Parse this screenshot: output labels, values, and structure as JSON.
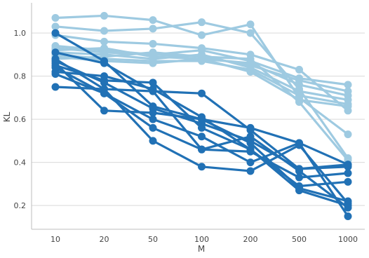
{
  "chart_data": {
    "type": "line",
    "xlabel": "M",
    "ylabel": "KL",
    "categories": [
      "10",
      "20",
      "50",
      "100",
      "200",
      "500",
      "1000"
    ],
    "ylim": [
      0.09,
      1.14
    ],
    "yticks": [
      0.2,
      0.4,
      0.6,
      0.8,
      1.0
    ],
    "ytick_labels": [
      "0.2",
      "0.4",
      "0.6",
      "0.8",
      "1.0"
    ],
    "grid": "horizontal",
    "legend": "none",
    "colors": {
      "light": "#9ecae1",
      "dark": "#2171b5",
      "grid": "#d9d9d9",
      "axis": "#bdbdbd",
      "text": "#444444"
    },
    "series": [
      {
        "group": "light",
        "values": [
          1.07,
          1.08,
          1.06,
          0.99,
          1.04,
          0.7,
          0.53
        ]
      },
      {
        "group": "light",
        "values": [
          1.03,
          1.01,
          1.02,
          1.05,
          1.0,
          0.74,
          0.42
        ]
      },
      {
        "group": "light",
        "values": [
          0.99,
          0.96,
          0.95,
          0.93,
          0.9,
          0.83,
          0.64
        ]
      },
      {
        "group": "light",
        "values": [
          0.94,
          0.92,
          0.9,
          0.92,
          0.87,
          0.79,
          0.76
        ]
      },
      {
        "group": "light",
        "values": [
          0.93,
          0.91,
          0.9,
          0.89,
          0.85,
          0.78,
          0.73
        ]
      },
      {
        "group": "light",
        "values": [
          0.92,
          0.93,
          0.89,
          0.88,
          0.86,
          0.76,
          0.71
        ]
      },
      {
        "group": "light",
        "values": [
          0.91,
          0.9,
          0.88,
          0.9,
          0.84,
          0.73,
          0.69
        ]
      },
      {
        "group": "light",
        "values": [
          0.9,
          0.88,
          0.87,
          0.87,
          0.83,
          0.71,
          0.67
        ]
      },
      {
        "group": "light",
        "values": [
          0.89,
          0.87,
          0.86,
          0.88,
          0.82,
          0.69,
          0.66
        ]
      },
      {
        "group": "light",
        "values": [
          0.88,
          0.89,
          0.91,
          0.89,
          0.88,
          0.68,
          0.41
        ]
      },
      {
        "group": "dark",
        "values": [
          1.0,
          0.87,
          0.66,
          0.6,
          0.56,
          0.49,
          0.39
        ]
      },
      {
        "group": "dark",
        "values": [
          0.91,
          0.86,
          0.73,
          0.72,
          0.55,
          0.37,
          0.38
        ]
      },
      {
        "group": "dark",
        "values": [
          0.87,
          0.77,
          0.65,
          0.58,
          0.5,
          0.37,
          0.39
        ]
      },
      {
        "group": "dark",
        "values": [
          0.86,
          0.64,
          0.63,
          0.6,
          0.49,
          0.28,
          0.22
        ]
      },
      {
        "group": "dark",
        "values": [
          0.85,
          0.78,
          0.77,
          0.56,
          0.46,
          0.29,
          0.31
        ]
      },
      {
        "group": "dark",
        "values": [
          0.82,
          0.8,
          0.74,
          0.61,
          0.46,
          0.27,
          0.2
        ]
      },
      {
        "group": "dark",
        "values": [
          0.81,
          0.72,
          0.6,
          0.52,
          0.4,
          0.49,
          0.15
        ]
      },
      {
        "group": "dark",
        "values": [
          0.75,
          0.74,
          0.5,
          0.38,
          0.36,
          0.48,
          0.21
        ]
      },
      {
        "group": "dark",
        "values": [
          0.84,
          0.72,
          0.56,
          0.46,
          0.52,
          0.36,
          0.19
        ]
      },
      {
        "group": "dark",
        "values": [
          0.88,
          0.74,
          0.73,
          0.46,
          0.45,
          0.33,
          0.35
        ]
      }
    ]
  }
}
